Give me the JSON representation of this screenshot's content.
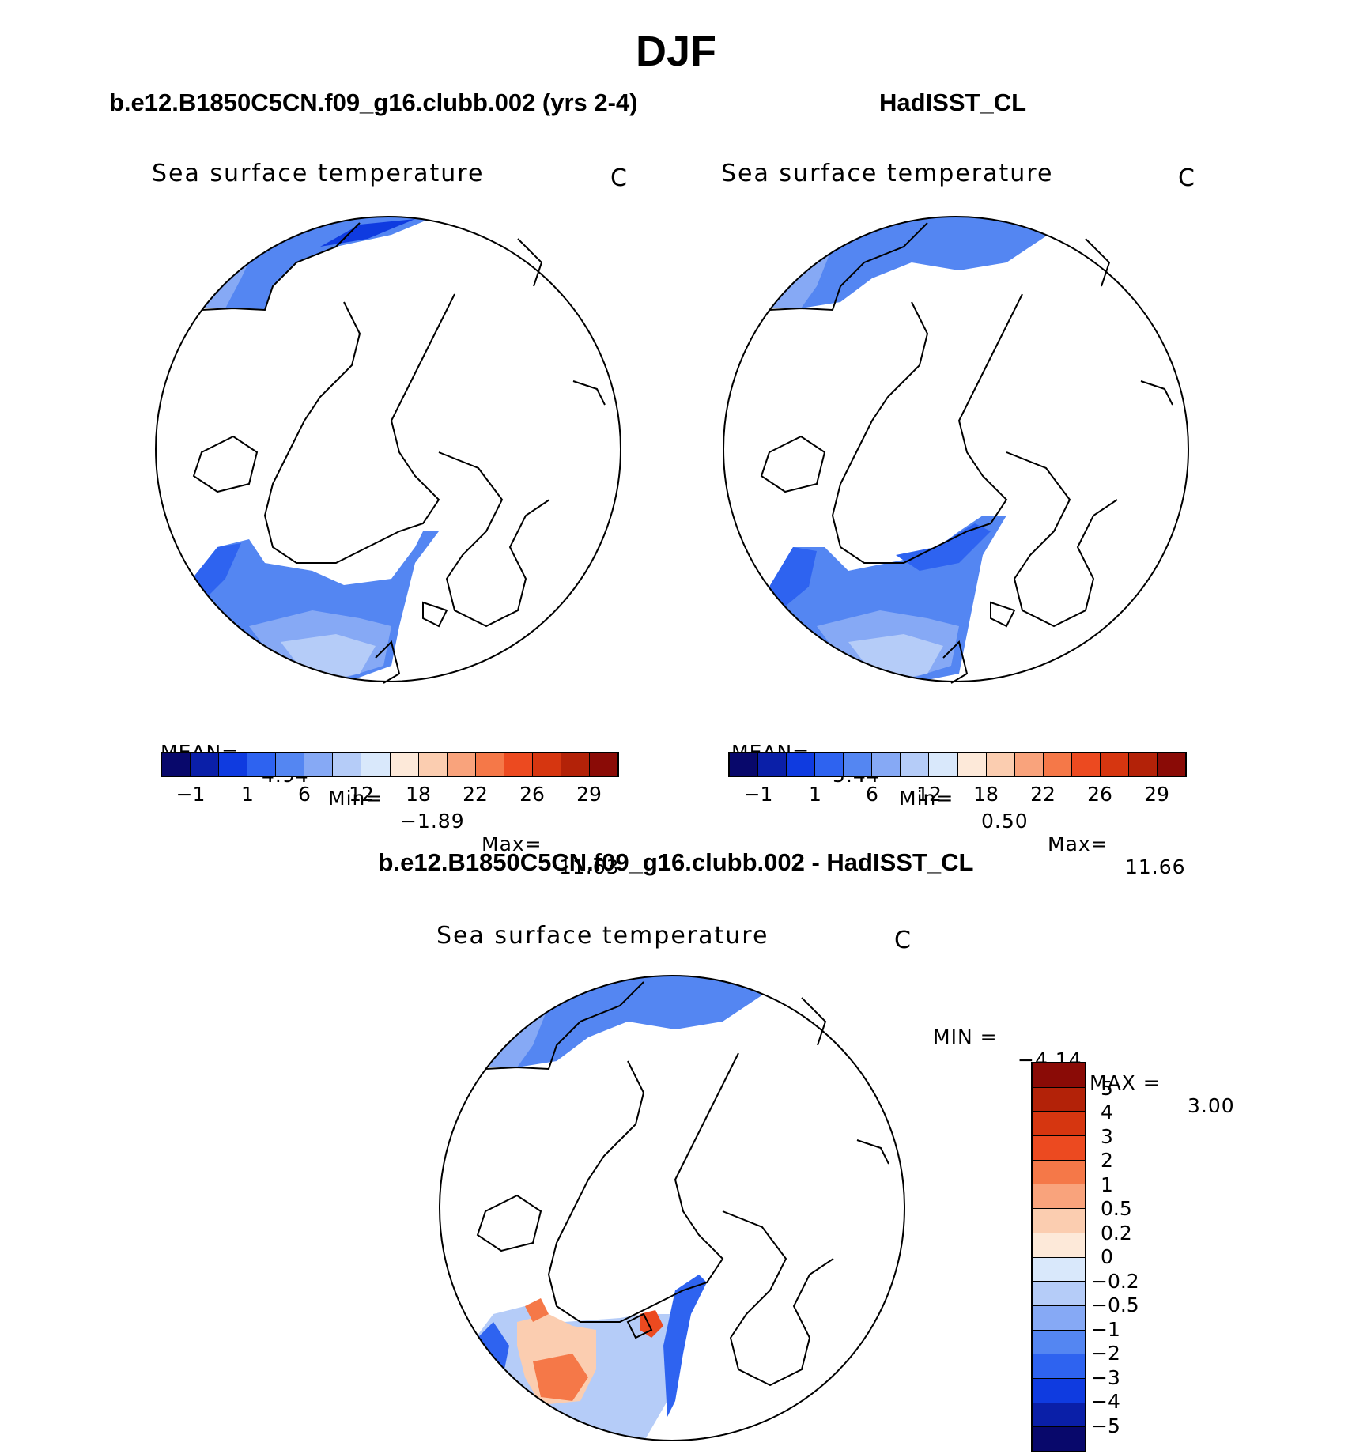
{
  "figure": {
    "title": "DJF"
  },
  "panels": {
    "model": {
      "title": "b.e12.B1850C5CN.f09_g16.clubb.002 (yrs 2-4)",
      "variable": "Sea surface temperature",
      "units": "C",
      "stats": {
        "mean_label": "MEAN=",
        "mean": "4.94",
        "min_label": "Min=",
        "min": "−1.89",
        "max_label": "Max=",
        "max": "11.63"
      }
    },
    "obs": {
      "title": "HadISST_CL",
      "variable": "Sea surface temperature",
      "units": "C",
      "stats": {
        "mean_label": "MEAN=",
        "mean": "5.44",
        "min_label": "Min=",
        "min": "0.50",
        "max_label": "Max=",
        "max": "11.66"
      }
    },
    "diff": {
      "title": "b.e12.B1850C5CN.f09_g16.clubb.002 - HadISST_CL",
      "variable": "Sea surface temperature",
      "units": "C",
      "stats": {
        "min_label": "MIN =",
        "min": "−4.14",
        "max_label": "MAX =",
        "max": "3.00"
      }
    }
  },
  "colorbars": {
    "sst_colors": [
      "#08086b",
      "#0a1fa8",
      "#0f3be0",
      "#2e63f0",
      "#5486f2",
      "#86a9f5",
      "#b5ccf8",
      "#d9e8fb",
      "#fde9d9",
      "#fbcdb0",
      "#f9a37c",
      "#f57848",
      "#ec4a20",
      "#d63610",
      "#b32208",
      "#8a0b06"
    ],
    "sst_ticks": [
      "−1",
      "1",
      "6",
      "12",
      "18",
      "22",
      "26",
      "29"
    ],
    "diff_colors": [
      "#8a0b06",
      "#b32208",
      "#d63610",
      "#ec4a20",
      "#f57848",
      "#f9a37c",
      "#fbcdb0",
      "#fde9d9",
      "#d9e8fb",
      "#b5ccf8",
      "#86a9f5",
      "#5486f2",
      "#2e63f0",
      "#0f3be0",
      "#0a1fa8",
      "#08086b"
    ],
    "diff_ticks": [
      "5",
      "4",
      "3",
      "2",
      "1",
      "0.5",
      "0.2",
      "0",
      "−0.2",
      "−0.5",
      "−1",
      "−2",
      "−3",
      "−4",
      "−5"
    ]
  }
}
